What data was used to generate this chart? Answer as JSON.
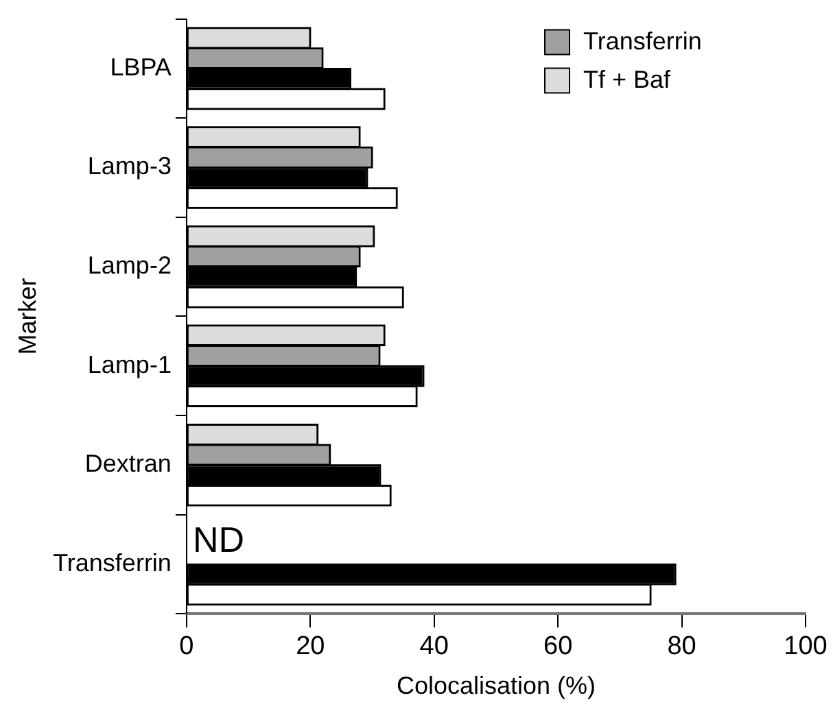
{
  "chart_data": {
    "type": "bar",
    "orientation": "horizontal",
    "xlabel": "Colocalisation (%)",
    "ylabel": "Marker",
    "categories": [
      "LBPA",
      "Lamp-3",
      "Lamp-2",
      "Lamp-1",
      "Dextran",
      "Transferrin"
    ],
    "series": [
      {
        "name": "Tf + Baf",
        "color": "#dcdcdc",
        "values": [
          20,
          28,
          30.3,
          32,
          21.2,
          null
        ]
      },
      {
        "name": "Transferrin",
        "color": "#a0a0a0",
        "values": [
          22,
          30,
          28,
          31.2,
          23.2,
          null
        ]
      },
      {
        "color": "#000000",
        "values": [
          26.5,
          29.2,
          27.4,
          38.3,
          31.3,
          79
        ]
      },
      {
        "color": "#ffffff",
        "values": [
          32,
          34,
          35,
          37.2,
          33,
          75
        ]
      }
    ],
    "xlim": [
      0,
      100
    ],
    "xticks": [
      0,
      20,
      40,
      60,
      80,
      100
    ],
    "grid": false,
    "legend": "top right",
    "annotations": [
      {
        "text": "ND",
        "x": 1,
        "y": "Transferrin"
      }
    ]
  }
}
